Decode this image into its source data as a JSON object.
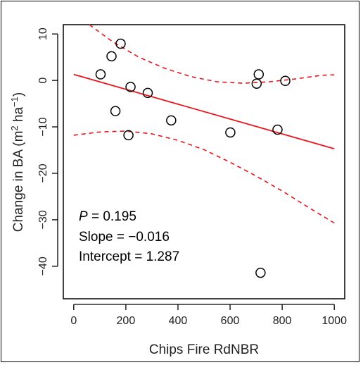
{
  "chart_data": {
    "type": "scatter",
    "xlabel": "Chips Fire RdNBR",
    "ylabel_main": "Change in BA (m",
    "ylabel_sup1": "2",
    "ylabel_mid": " ha",
    "ylabel_sup2": "−1",
    "ylabel_end": ")",
    "xlim": [
      -40,
      1040
    ],
    "ylim": [
      -47,
      12
    ],
    "xticks": [
      0,
      200,
      400,
      600,
      800,
      1000
    ],
    "yticks": [
      10,
      0,
      -10,
      -20,
      -30,
      -40
    ],
    "points": [
      {
        "x": 103,
        "y": 1.3
      },
      {
        "x": 145,
        "y": 5.2
      },
      {
        "x": 180,
        "y": 7.9
      },
      {
        "x": 160,
        "y": -6.6
      },
      {
        "x": 218,
        "y": -1.4
      },
      {
        "x": 284,
        "y": -2.7
      },
      {
        "x": 210,
        "y": -11.8
      },
      {
        "x": 374,
        "y": -8.6
      },
      {
        "x": 601,
        "y": -11.2
      },
      {
        "x": 702,
        "y": -0.7
      },
      {
        "x": 710,
        "y": 1.3
      },
      {
        "x": 812,
        "y": -0.1
      },
      {
        "x": 782,
        "y": -10.6
      },
      {
        "x": 717,
        "y": -41.4
      }
    ],
    "fit_line": {
      "x": [
        0,
        1000
      ],
      "y": [
        1.287,
        -14.713
      ],
      "color": "#e8141c"
    },
    "upper_ci": {
      "x": [
        60,
        150,
        250,
        350,
        450,
        550,
        650,
        750,
        850,
        950,
        1000
      ],
      "y": [
        12.0,
        8.3,
        5.0,
        2.6,
        0.8,
        -0.3,
        -0.6,
        -0.3,
        0.3,
        1.1,
        1.2
      ]
    },
    "lower_ci": {
      "x": [
        0,
        100,
        200,
        300,
        400,
        500,
        600,
        700,
        800,
        900,
        1000
      ],
      "y": [
        -11.8,
        -11.1,
        -10.9,
        -11.5,
        -12.9,
        -14.9,
        -17.6,
        -20.6,
        -23.8,
        -27.3,
        -30.7
      ]
    },
    "annotations": {
      "p_symbol": "P",
      "p_value": " = 0.195",
      "slope": "Slope = −0.016",
      "intercept": "Intercept = 1.287"
    },
    "colors": {
      "fit": "#e8141c",
      "points": "#000000"
    }
  }
}
